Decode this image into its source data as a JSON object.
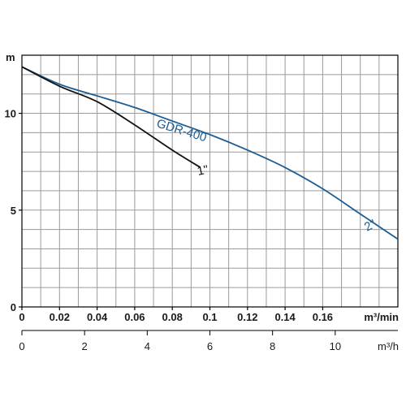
{
  "chart_data": {
    "type": "line",
    "title": "",
    "colors": {
      "grid": "#9a9a9a",
      "axis": "#000000",
      "curve_2in": "#1b5e95",
      "curve_1in": "#111111"
    },
    "y_axis": {
      "unit_label": "m",
      "range": [
        0,
        13
      ],
      "ticks": [
        {
          "value": 0,
          "label": "0"
        },
        {
          "value": 5,
          "label": "5"
        },
        {
          "value": 10,
          "label": "10"
        }
      ]
    },
    "x_axis_primary": {
      "unit_label": "m³/min",
      "range": [
        0,
        0.2
      ],
      "ticks": [
        {
          "value": 0,
          "label": "0"
        },
        {
          "value": 0.02,
          "label": "0.02"
        },
        {
          "value": 0.04,
          "label": "0.04"
        },
        {
          "value": 0.06,
          "label": "0.06"
        },
        {
          "value": 0.08,
          "label": "0.08"
        },
        {
          "value": 0.1,
          "label": "0.1"
        },
        {
          "value": 0.12,
          "label": "0.12"
        },
        {
          "value": 0.14,
          "label": "0.14"
        },
        {
          "value": 0.16,
          "label": "0.16"
        }
      ]
    },
    "x_axis_secondary": {
      "unit_label": "m³/h",
      "range": [
        0,
        12
      ],
      "ticks": [
        {
          "value": 0,
          "label": "0"
        },
        {
          "value": 2,
          "label": "2"
        },
        {
          "value": 4,
          "label": "4"
        },
        {
          "value": 6,
          "label": "6"
        },
        {
          "value": 8,
          "label": "8"
        },
        {
          "value": 10,
          "label": "10"
        }
      ]
    },
    "grid": {
      "x_step": 0.01,
      "y_step": 1
    },
    "series": [
      {
        "name": "GDR-400",
        "label_2": "2\"",
        "color_key": "curve_2in",
        "points": [
          [
            0,
            12.4
          ],
          [
            0.02,
            11.5
          ],
          [
            0.04,
            10.9
          ],
          [
            0.06,
            10.3
          ],
          [
            0.08,
            9.6
          ],
          [
            0.1,
            8.9
          ],
          [
            0.12,
            8.1
          ],
          [
            0.14,
            7.2
          ],
          [
            0.16,
            6.1
          ],
          [
            0.18,
            4.8
          ],
          [
            0.2,
            3.5
          ]
        ]
      },
      {
        "name": "1\"",
        "color_key": "curve_1in",
        "points": [
          [
            0,
            12.4
          ],
          [
            0.02,
            11.4
          ],
          [
            0.04,
            10.6
          ],
          [
            0.06,
            9.4
          ],
          [
            0.08,
            8.1
          ],
          [
            0.095,
            7.2
          ]
        ]
      }
    ]
  }
}
